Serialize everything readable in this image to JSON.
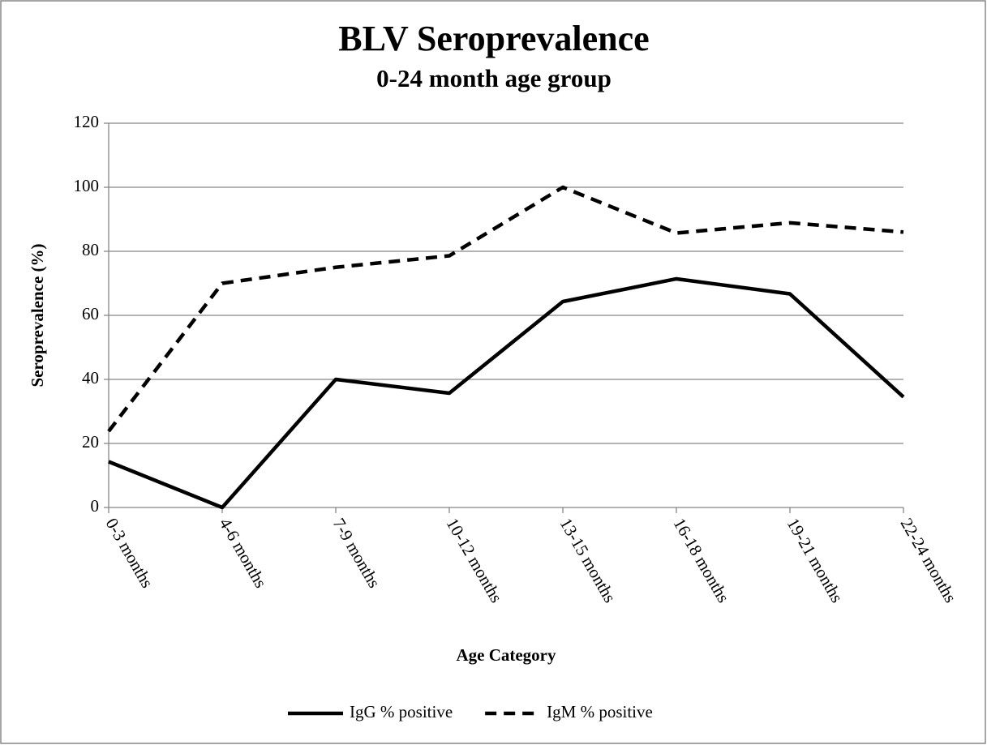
{
  "chart_data": {
    "type": "line",
    "title": "BLV Seroprevalence",
    "subtitle": "0-24 month age group",
    "x_label": "Age Category",
    "y_label": "Seroprevalence (%)",
    "categories": [
      "0-3 months",
      "4-6 months",
      "7-9 months",
      "10-12 months",
      "13-15 months",
      "16-18 months",
      "19-21 months",
      "22-24 months"
    ],
    "series": [
      {
        "name": "IgG % positive",
        "color": "#000000",
        "dash": "solid",
        "values": [
          14.3,
          0,
          40,
          35.7,
          64.3,
          71.4,
          66.7,
          34.5
        ]
      },
      {
        "name": "IgM % positive",
        "color": "#000000",
        "dash": "dashed",
        "values": [
          23.8,
          70,
          75,
          78.6,
          100,
          85.7,
          88.9,
          86
        ]
      }
    ],
    "ylim": [
      0,
      120
    ],
    "yticks": [
      0,
      20,
      40,
      60,
      80,
      100,
      120
    ],
    "grid": true,
    "legend": "bottom"
  }
}
